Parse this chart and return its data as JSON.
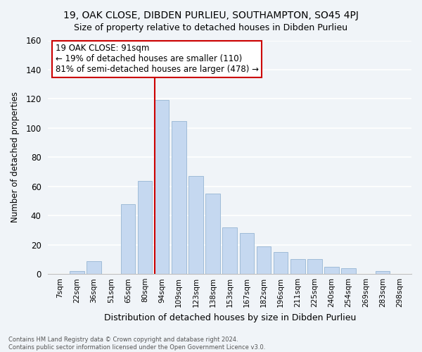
{
  "title": "19, OAK CLOSE, DIBDEN PURLIEU, SOUTHAMPTON, SO45 4PJ",
  "subtitle": "Size of property relative to detached houses in Dibden Purlieu",
  "xlabel": "Distribution of detached houses by size in Dibden Purlieu",
  "ylabel": "Number of detached properties",
  "bar_color": "#c5d8f0",
  "bar_edge_color": "#a0bcd8",
  "highlight_color": "#cc0000",
  "categories": [
    "7sqm",
    "22sqm",
    "36sqm",
    "51sqm",
    "65sqm",
    "80sqm",
    "94sqm",
    "109sqm",
    "123sqm",
    "138sqm",
    "153sqm",
    "167sqm",
    "182sqm",
    "196sqm",
    "211sqm",
    "225sqm",
    "240sqm",
    "254sqm",
    "269sqm",
    "283sqm",
    "298sqm"
  ],
  "values": [
    0,
    2,
    9,
    0,
    48,
    64,
    119,
    105,
    67,
    55,
    32,
    28,
    19,
    15,
    10,
    10,
    5,
    4,
    0,
    2,
    0
  ],
  "highlight_bar_index": 6,
  "ylim": [
    0,
    160
  ],
  "yticks": [
    0,
    20,
    40,
    60,
    80,
    100,
    120,
    140,
    160
  ],
  "annotation_title": "19 OAK CLOSE: 91sqm",
  "annotation_line1": "← 19% of detached houses are smaller (110)",
  "annotation_line2": "81% of semi-detached houses are larger (478) →",
  "footer_line1": "Contains HM Land Registry data © Crown copyright and database right 2024.",
  "footer_line2": "Contains public sector information licensed under the Open Government Licence v3.0.",
  "background_color": "#f0f4f8"
}
